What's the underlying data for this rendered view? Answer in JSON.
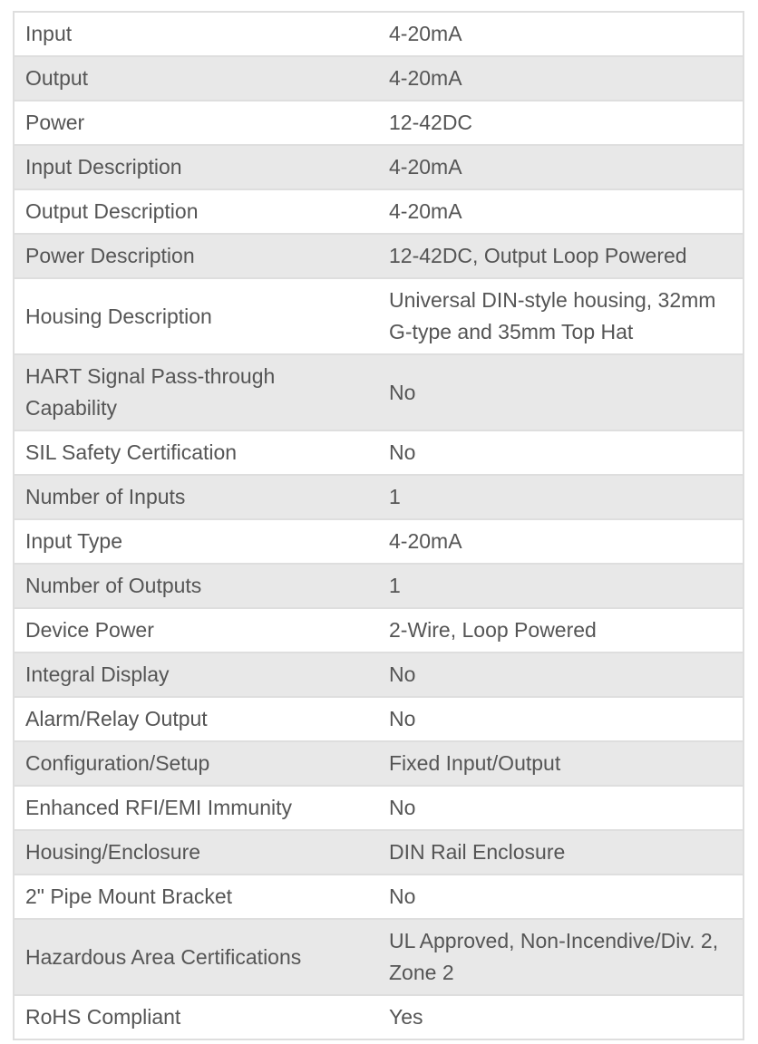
{
  "specs": [
    {
      "label": "Input",
      "value": "4-20mA"
    },
    {
      "label": "Output",
      "value": "4-20mA"
    },
    {
      "label": "Power",
      "value": "12-42DC"
    },
    {
      "label": "Input Description",
      "value": "4-20mA"
    },
    {
      "label": "Output Description",
      "value": "4-20mA"
    },
    {
      "label": "Power Description",
      "value": "12-42DC, Output Loop Powered"
    },
    {
      "label": "Housing Description",
      "value": "Universal DIN-style housing, 32mm G-type and 35mm Top Hat"
    },
    {
      "label": "HART Signal Pass-through Capability",
      "value": "No"
    },
    {
      "label": "SIL Safety Certification",
      "value": "No"
    },
    {
      "label": "Number of Inputs",
      "value": "1"
    },
    {
      "label": "Input Type",
      "value": "4-20mA"
    },
    {
      "label": "Number of Outputs",
      "value": "1"
    },
    {
      "label": "Device Power",
      "value": "2-Wire, Loop Powered"
    },
    {
      "label": "Integral Display",
      "value": "No"
    },
    {
      "label": "Alarm/Relay Output",
      "value": "No"
    },
    {
      "label": "Configuration/Setup",
      "value": "Fixed Input/Output"
    },
    {
      "label": "Enhanced RFI/EMI Immunity",
      "value": "No"
    },
    {
      "label": "Housing/Enclosure",
      "value": "DIN Rail Enclosure"
    },
    {
      "label": "2\" Pipe Mount Bracket",
      "value": "No"
    },
    {
      "label": "Hazardous Area Certifications",
      "value": "UL Approved, Non-Incendive/Div. 2, Zone 2"
    },
    {
      "label": "RoHS Compliant",
      "value": "Yes"
    }
  ]
}
